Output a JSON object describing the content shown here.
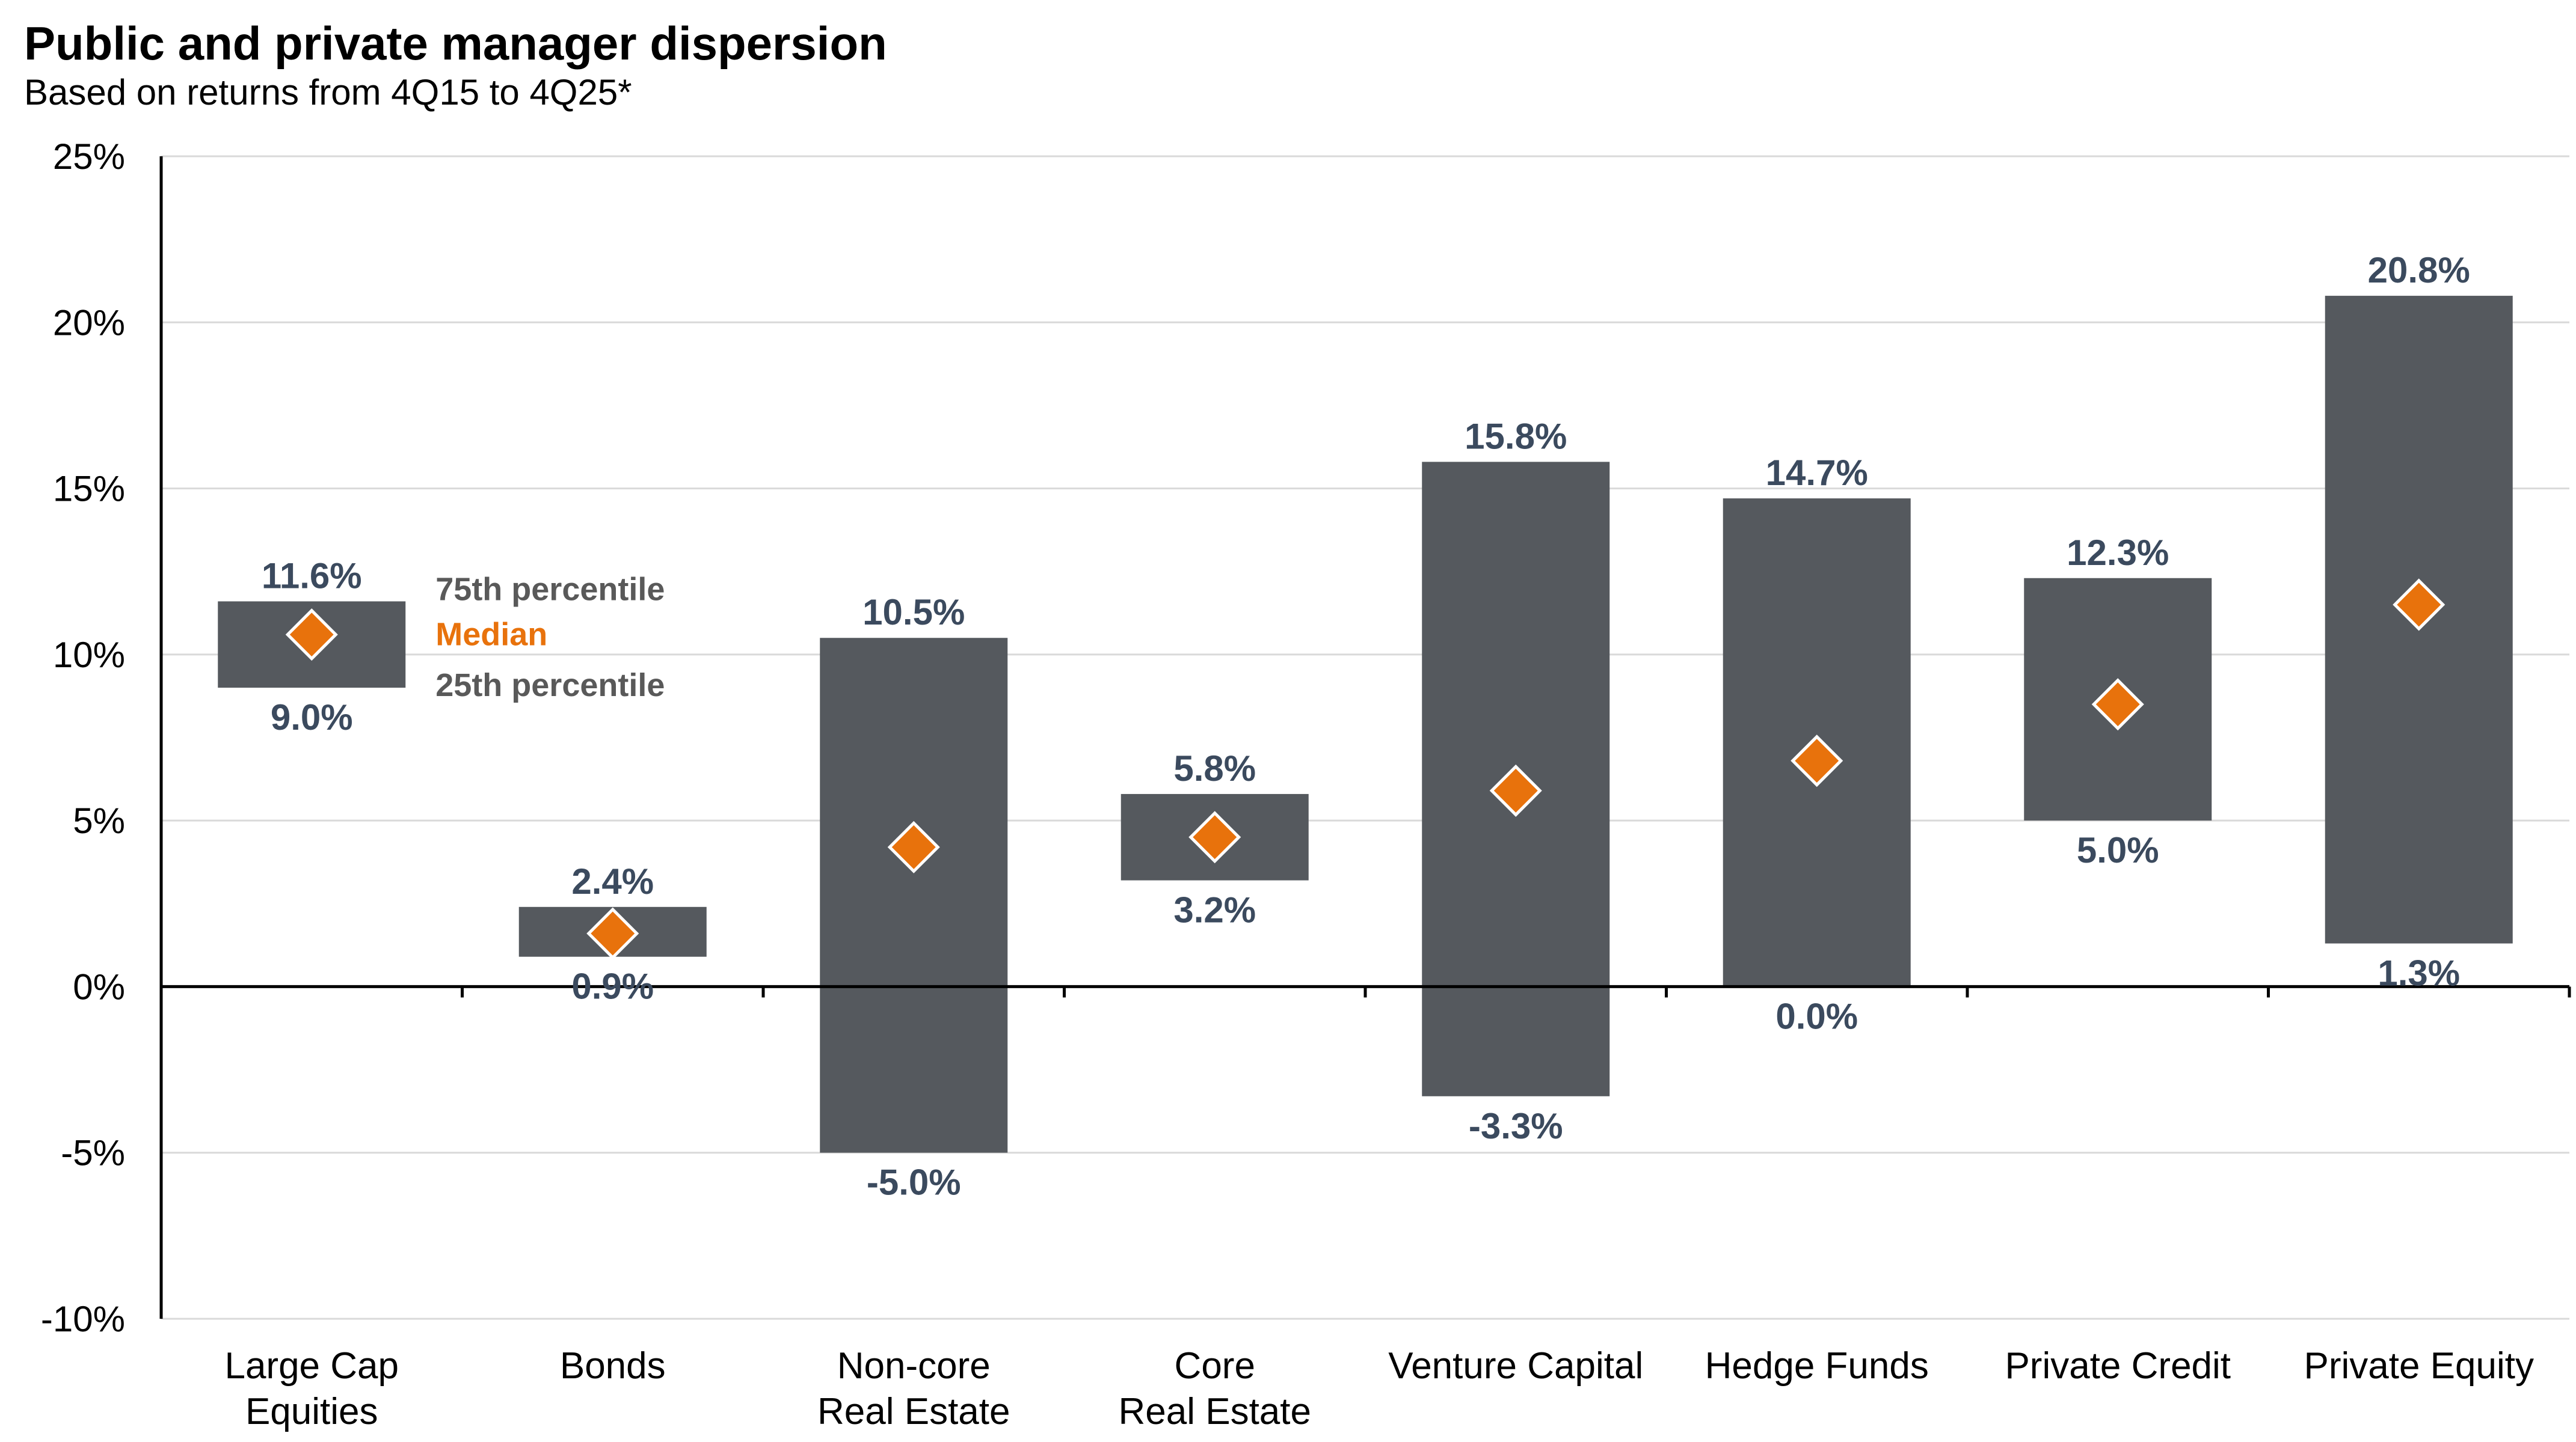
{
  "title": "Public and private manager dispersion",
  "subtitle": "Based on returns from 4Q15 to 4Q25*",
  "colors": {
    "bar": "#55595e",
    "median": "#e8720c",
    "label": "#3b4a5e",
    "grid": "#d9d9d9",
    "axis": "#000000"
  },
  "chart_data": {
    "type": "bar",
    "title": "Public and private manager dispersion",
    "subtitle": "Based on returns from 4Q15 to 4Q25*",
    "ylim": [
      -10,
      25
    ],
    "yticks": [
      -10,
      -5,
      0,
      5,
      10,
      15,
      20,
      25
    ],
    "ytick_labels": [
      "-10%",
      "-5%",
      "0%",
      "5%",
      "10%",
      "15%",
      "20%",
      "25%"
    ],
    "grid": true,
    "categories": [
      [
        "Large Cap",
        "Equities"
      ],
      [
        "Bonds"
      ],
      [
        "Non-core",
        "Real Estate"
      ],
      [
        "Core",
        "Real Estate"
      ],
      [
        "Venture Capital"
      ],
      [
        "Hedge Funds"
      ],
      [
        "Private Credit"
      ],
      [
        "Private Equity"
      ]
    ],
    "series": [
      {
        "name": "75th percentile",
        "values": [
          11.6,
          2.4,
          10.5,
          5.8,
          15.8,
          14.7,
          12.3,
          20.8
        ],
        "labels": [
          "11.6%",
          "2.4%",
          "10.5%",
          "5.8%",
          "15.8%",
          "14.7%",
          "12.3%",
          "20.8%"
        ]
      },
      {
        "name": "Median",
        "values": [
          10.6,
          1.6,
          4.2,
          4.5,
          5.9,
          6.8,
          8.5,
          11.5
        ]
      },
      {
        "name": "25th percentile",
        "values": [
          9.0,
          0.9,
          -5.0,
          3.2,
          -3.3,
          0.0,
          5.0,
          1.3
        ],
        "labels": [
          "9.0%",
          "0.9%",
          "-5.0%",
          "3.2%",
          "-3.3%",
          "0.0%",
          "5.0%",
          "1.3%"
        ]
      }
    ],
    "legend": {
      "p75": "75th percentile",
      "median": "Median",
      "p25": "25th percentile"
    }
  }
}
